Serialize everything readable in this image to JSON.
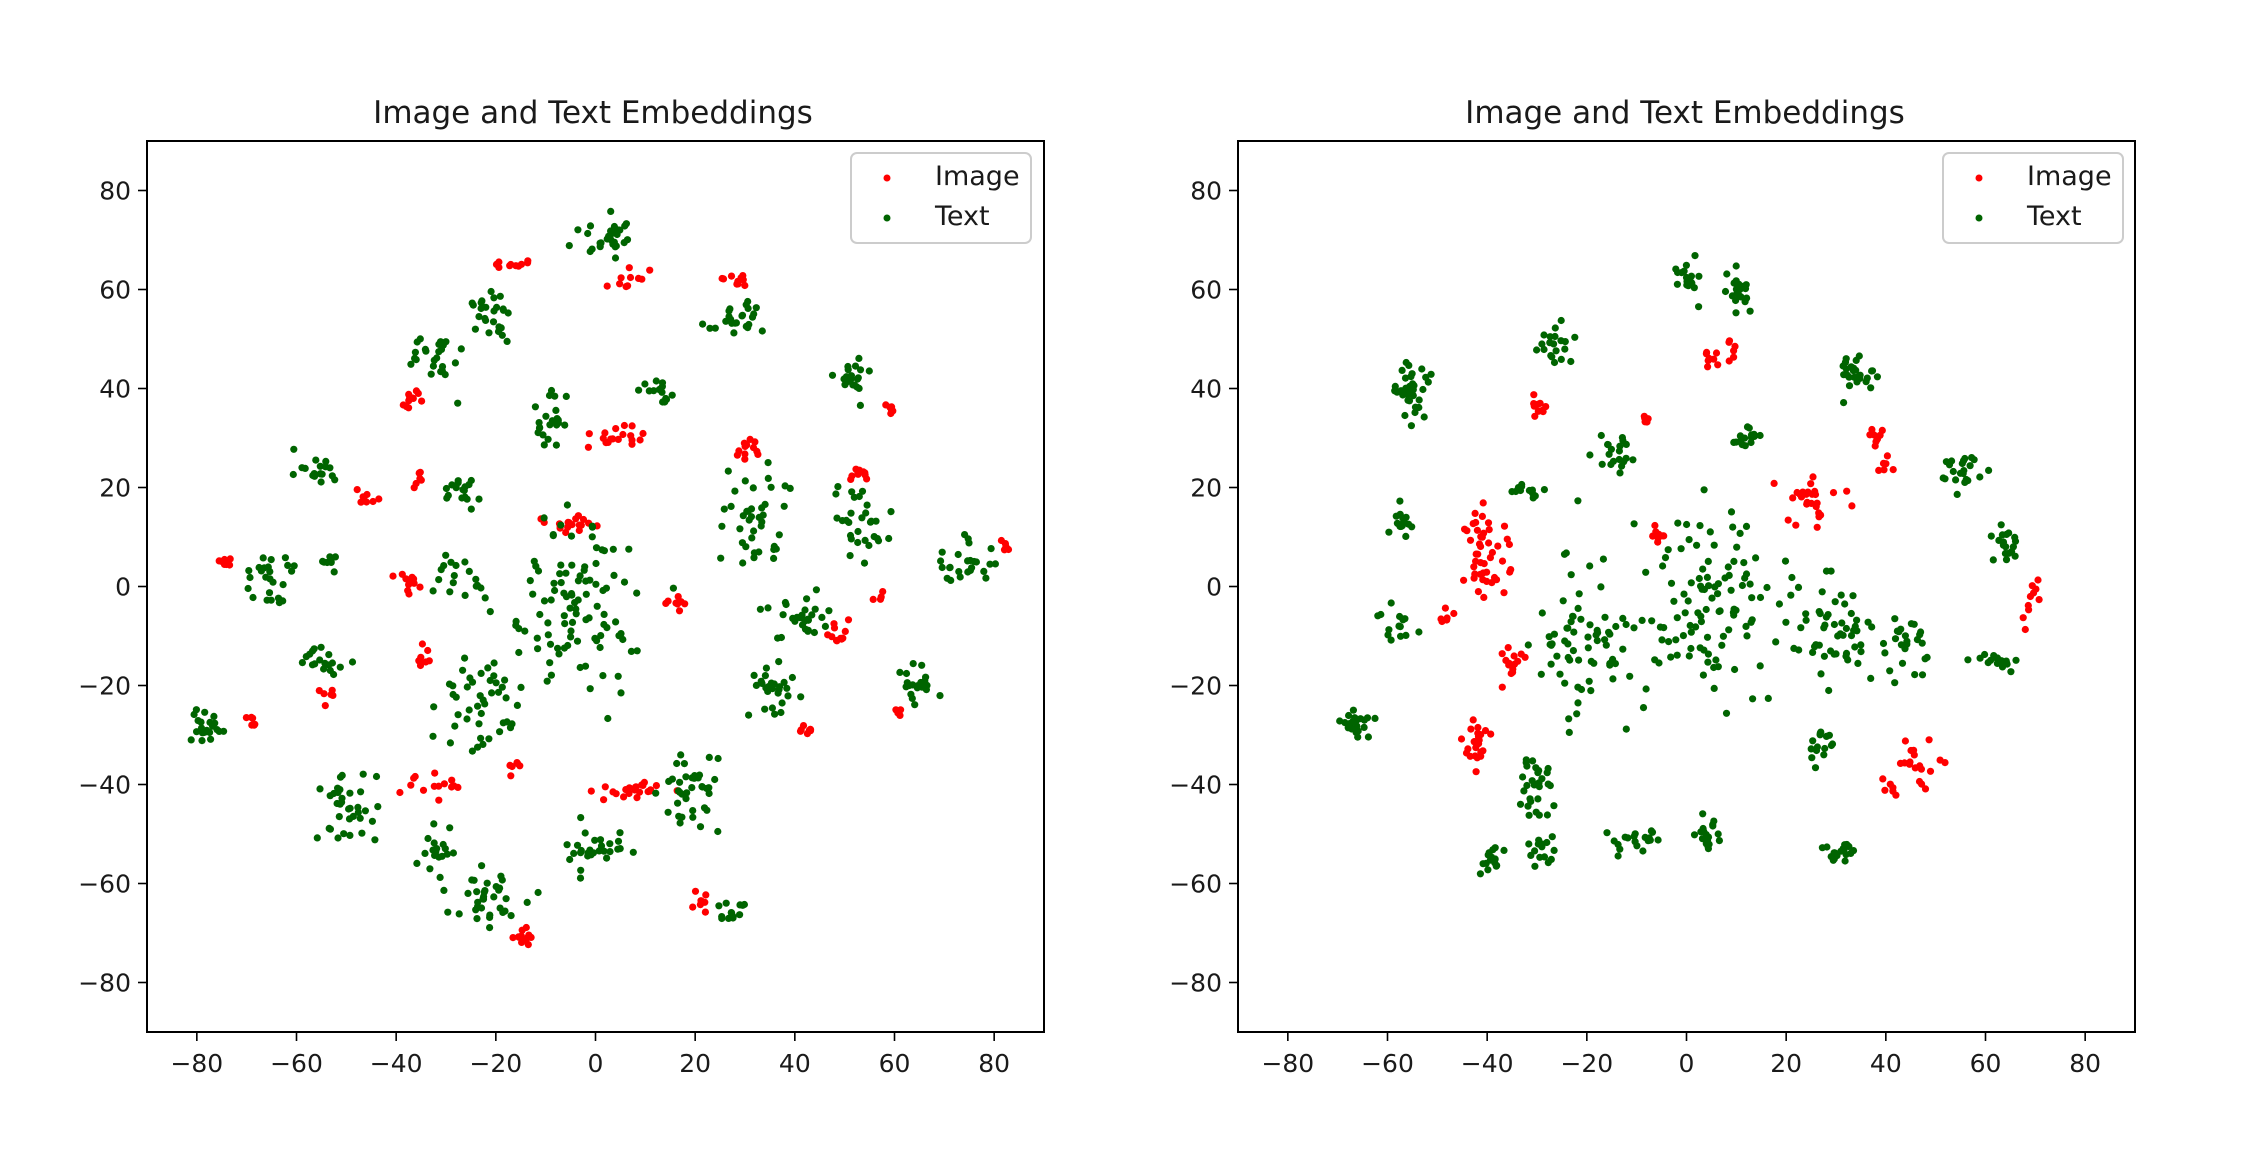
{
  "chart_data": [
    {
      "type": "scatter",
      "title": "Image and Text Embeddings",
      "xlabel": "",
      "ylabel": "",
      "xlim": [
        -90,
        90
      ],
      "ylim": [
        -90,
        90
      ],
      "xticks": [
        -80,
        -60,
        -40,
        -20,
        0,
        20,
        40,
        60,
        80
      ],
      "yticks": [
        -80,
        -60,
        -40,
        -20,
        0,
        20,
        40,
        60,
        80
      ],
      "xtick_labels": [
        "−80",
        "−60",
        "−40",
        "−20",
        "0",
        "20",
        "40",
        "60",
        "80"
      ],
      "ytick_labels": [
        "−80",
        "−60",
        "−40",
        "−20",
        "0",
        "20",
        "40",
        "60",
        "80"
      ],
      "grid": false,
      "legend": {
        "placement": "top-right",
        "entries": [
          "Image",
          "Text"
        ]
      },
      "series": [
        {
          "name": "Image",
          "color": "#ff0000",
          "clusters": [
            {
              "x": -17,
              "y": 65,
              "sx": 2,
              "sy": 1,
              "n": 10
            },
            {
              "x": 7,
              "y": 62,
              "sx": 2.5,
              "sy": 1.5,
              "n": 10
            },
            {
              "x": 28,
              "y": 62,
              "sx": 1.2,
              "sy": 1,
              "n": 10
            },
            {
              "x": -37,
              "y": 38,
              "sx": 1.2,
              "sy": 1.5,
              "n": 12
            },
            {
              "x": 5,
              "y": 30,
              "sx": 4,
              "sy": 2,
              "n": 18
            },
            {
              "x": 31,
              "y": 28,
              "sx": 2,
              "sy": 2,
              "n": 12
            },
            {
              "x": 59,
              "y": 36,
              "sx": 0.8,
              "sy": 1,
              "n": 6
            },
            {
              "x": -35,
              "y": 21,
              "sx": 1,
              "sy": 1.5,
              "n": 6
            },
            {
              "x": -46,
              "y": 18,
              "sx": 2,
              "sy": 1.5,
              "n": 8
            },
            {
              "x": 53,
              "y": 23,
              "sx": 2,
              "sy": 1,
              "n": 12
            },
            {
              "x": -5,
              "y": 13,
              "sx": 4,
              "sy": 1,
              "n": 18
            },
            {
              "x": -74,
              "y": 5,
              "sx": 1,
              "sy": 1.5,
              "n": 8
            },
            {
              "x": -38,
              "y": 1,
              "sx": 2,
              "sy": 1.5,
              "n": 12
            },
            {
              "x": 16,
              "y": -4,
              "sx": 1.5,
              "sy": 1,
              "n": 8
            },
            {
              "x": 49,
              "y": -10,
              "sx": 1.5,
              "sy": 2,
              "n": 12
            },
            {
              "x": 57,
              "y": -2,
              "sx": 1,
              "sy": 1,
              "n": 4
            },
            {
              "x": -36,
              "y": -15,
              "sx": 1.5,
              "sy": 1.5,
              "n": 9
            },
            {
              "x": -54,
              "y": -21,
              "sx": 1.2,
              "sy": 1,
              "n": 6
            },
            {
              "x": -69,
              "y": -27,
              "sx": 1,
              "sy": 1.2,
              "n": 6
            },
            {
              "x": 42,
              "y": -29,
              "sx": 1.2,
              "sy": 0.8,
              "n": 8
            },
            {
              "x": 61,
              "y": -25,
              "sx": 1,
              "sy": 1,
              "n": 5
            },
            {
              "x": -32,
              "y": -40,
              "sx": 4,
              "sy": 1.5,
              "n": 14
            },
            {
              "x": -16,
              "y": -36,
              "sx": 1.2,
              "sy": 1.5,
              "n": 6
            },
            {
              "x": 7,
              "y": -41,
              "sx": 5,
              "sy": 1,
              "n": 22
            },
            {
              "x": 21,
              "y": -63,
              "sx": 1,
              "sy": 1.5,
              "n": 7
            },
            {
              "x": -15,
              "y": -71,
              "sx": 1.5,
              "sy": 1,
              "n": 12
            },
            {
              "x": 82,
              "y": 8,
              "sx": 0.7,
              "sy": 0.7,
              "n": 5
            }
          ]
        },
        {
          "name": "Text",
          "color": "#006400",
          "clusters": [
            {
              "x": 3,
              "y": 70,
              "sx": 3.5,
              "sy": 3,
              "n": 30
            },
            {
              "x": -21,
              "y": 55,
              "sx": 3,
              "sy": 3,
              "n": 25
            },
            {
              "x": 28,
              "y": 54,
              "sx": 4,
              "sy": 3,
              "n": 25
            },
            {
              "x": -32,
              "y": 46,
              "sx": 3,
              "sy": 3.5,
              "n": 25
            },
            {
              "x": -9,
              "y": 33,
              "sx": 2,
              "sy": 4,
              "n": 22
            },
            {
              "x": 12,
              "y": 40,
              "sx": 2.5,
              "sy": 2,
              "n": 15
            },
            {
              "x": 52,
              "y": 41,
              "sx": 2.5,
              "sy": 3,
              "n": 20
            },
            {
              "x": -56,
              "y": 24,
              "sx": 3,
              "sy": 2,
              "n": 18
            },
            {
              "x": -27,
              "y": 20,
              "sx": 2.5,
              "sy": 2.5,
              "n": 18
            },
            {
              "x": 32,
              "y": 12,
              "sx": 4,
              "sy": 7,
              "n": 40
            },
            {
              "x": 52,
              "y": 13,
              "sx": 4,
              "sy": 5,
              "n": 30
            },
            {
              "x": -65,
              "y": 2,
              "sx": 3,
              "sy": 4,
              "n": 25
            },
            {
              "x": -53,
              "y": 5,
              "sx": 1,
              "sy": 1.5,
              "n": 8
            },
            {
              "x": -28,
              "y": 2,
              "sx": 3,
              "sy": 3,
              "n": 18
            },
            {
              "x": 74,
              "y": 5,
              "sx": 4,
              "sy": 3,
              "n": 25
            },
            {
              "x": -5,
              "y": -5,
              "sx": 9,
              "sy": 12,
              "n": 100
            },
            {
              "x": 40,
              "y": -6,
              "sx": 4,
              "sy": 4,
              "n": 30
            },
            {
              "x": -55,
              "y": -15,
              "sx": 3,
              "sy": 2,
              "n": 18
            },
            {
              "x": -24,
              "y": -22,
              "sx": 5,
              "sy": 6,
              "n": 45
            },
            {
              "x": 35,
              "y": -21,
              "sx": 3,
              "sy": 3.5,
              "n": 28
            },
            {
              "x": 65,
              "y": -20,
              "sx": 2,
              "sy": 3,
              "n": 20
            },
            {
              "x": -78,
              "y": -28,
              "sx": 2.5,
              "sy": 2,
              "n": 22
            },
            {
              "x": -50,
              "y": -45,
              "sx": 4,
              "sy": 5,
              "n": 35
            },
            {
              "x": 20,
              "y": -42,
              "sx": 4,
              "sy": 5,
              "n": 38
            },
            {
              "x": 0,
              "y": -52,
              "sx": 4,
              "sy": 3,
              "n": 28
            },
            {
              "x": -22,
              "y": -63,
              "sx": 4,
              "sy": 4,
              "n": 35
            },
            {
              "x": 27,
              "y": -66,
              "sx": 2,
              "sy": 2,
              "n": 15
            },
            {
              "x": -32,
              "y": -54,
              "sx": 2.5,
              "sy": 3,
              "n": 18
            }
          ]
        }
      ]
    },
    {
      "type": "scatter",
      "title": "Image and Text Embeddings",
      "xlabel": "",
      "ylabel": "",
      "xlim": [
        -90,
        90
      ],
      "ylim": [
        -90,
        90
      ],
      "xticks": [
        -80,
        -60,
        -40,
        -20,
        0,
        20,
        40,
        60,
        80
      ],
      "yticks": [
        -80,
        -60,
        -40,
        -20,
        0,
        20,
        40,
        60,
        80
      ],
      "xtick_labels": [
        "−80",
        "−60",
        "−40",
        "−20",
        "0",
        "20",
        "40",
        "60",
        "80"
      ],
      "ytick_labels": [
        "−80",
        "−60",
        "−40",
        "−20",
        "0",
        "20",
        "40",
        "60",
        "80"
      ],
      "grid": false,
      "legend": {
        "placement": "top-right",
        "entries": [
          "Image",
          "Text"
        ]
      },
      "series": [
        {
          "name": "Image",
          "color": "#ff0000",
          "clusters": [
            {
              "x": 5,
              "y": 46,
              "sx": 1,
              "sy": 1,
              "n": 8
            },
            {
              "x": 9,
              "y": 48,
              "sx": 0.8,
              "sy": 1,
              "n": 6
            },
            {
              "x": -30,
              "y": 36,
              "sx": 1,
              "sy": 1.5,
              "n": 10
            },
            {
              "x": -8,
              "y": 34,
              "sx": 0.8,
              "sy": 0.8,
              "n": 5
            },
            {
              "x": 38,
              "y": 31,
              "sx": 1,
              "sy": 1.5,
              "n": 9
            },
            {
              "x": 40,
              "y": 25,
              "sx": 1,
              "sy": 1,
              "n": 6
            },
            {
              "x": -42,
              "y": 12,
              "sx": 2,
              "sy": 3,
              "n": 14
            },
            {
              "x": -40,
              "y": 3,
              "sx": 3,
              "sy": 5,
              "n": 32
            },
            {
              "x": 24,
              "y": 17,
              "sx": 4,
              "sy": 3,
              "n": 28
            },
            {
              "x": -6,
              "y": 10,
              "sx": 1.2,
              "sy": 1.2,
              "n": 8
            },
            {
              "x": -48,
              "y": -6,
              "sx": 1,
              "sy": 1,
              "n": 6
            },
            {
              "x": -35,
              "y": -14,
              "sx": 2,
              "sy": 3,
              "n": 14
            },
            {
              "x": 69,
              "y": -3,
              "sx": 1,
              "sy": 3,
              "n": 10
            },
            {
              "x": -43,
              "y": -32,
              "sx": 2,
              "sy": 3,
              "n": 24
            },
            {
              "x": 46,
              "y": -35,
              "sx": 3,
              "sy": 3,
              "n": 18
            },
            {
              "x": 41,
              "y": -41,
              "sx": 1,
              "sy": 1,
              "n": 6
            }
          ]
        },
        {
          "name": "Text",
          "color": "#006400",
          "clusters": [
            {
              "x": 0,
              "y": 63,
              "sx": 2,
              "sy": 2.5,
              "n": 20
            },
            {
              "x": 11,
              "y": 60,
              "sx": 2.5,
              "sy": 2.5,
              "n": 20
            },
            {
              "x": -55,
              "y": 40,
              "sx": 3,
              "sy": 3.5,
              "n": 35
            },
            {
              "x": -27,
              "y": 48,
              "sx": 2.5,
              "sy": 2.5,
              "n": 20
            },
            {
              "x": 34,
              "y": 42,
              "sx": 3,
              "sy": 3,
              "n": 28
            },
            {
              "x": 12,
              "y": 30,
              "sx": 2,
              "sy": 1.5,
              "n": 15
            },
            {
              "x": -14,
              "y": 27,
              "sx": 2.5,
              "sy": 3,
              "n": 20
            },
            {
              "x": 55,
              "y": 23,
              "sx": 2.5,
              "sy": 3,
              "n": 22
            },
            {
              "x": -32,
              "y": 20,
              "sx": 2,
              "sy": 1.5,
              "n": 12
            },
            {
              "x": -57,
              "y": 12,
              "sx": 1.5,
              "sy": 2.5,
              "n": 15
            },
            {
              "x": 64,
              "y": 8,
              "sx": 2,
              "sy": 2.5,
              "n": 18
            },
            {
              "x": 5,
              "y": -5,
              "sx": 8,
              "sy": 12,
              "n": 110
            },
            {
              "x": 30,
              "y": -10,
              "sx": 5,
              "sy": 7,
              "n": 50
            },
            {
              "x": -20,
              "y": -12,
              "sx": 7,
              "sy": 10,
              "n": 70
            },
            {
              "x": 44,
              "y": -12,
              "sx": 2.5,
              "sy": 5,
              "n": 25
            },
            {
              "x": 62,
              "y": -15,
              "sx": 3,
              "sy": 2,
              "n": 15
            },
            {
              "x": -58,
              "y": -8,
              "sx": 2,
              "sy": 2,
              "n": 15
            },
            {
              "x": -66,
              "y": -28,
              "sx": 2.5,
              "sy": 2,
              "n": 22
            },
            {
              "x": -30,
              "y": -40,
              "sx": 2,
              "sy": 6,
              "n": 30
            },
            {
              "x": 27,
              "y": -32,
              "sx": 2,
              "sy": 2.5,
              "n": 15
            },
            {
              "x": -39,
              "y": -55,
              "sx": 1.5,
              "sy": 1.5,
              "n": 15
            },
            {
              "x": -29,
              "y": -53,
              "sx": 2,
              "sy": 2,
              "n": 15
            },
            {
              "x": -10,
              "y": -51,
              "sx": 4,
              "sy": 1.5,
              "n": 20
            },
            {
              "x": 4,
              "y": -51,
              "sx": 2,
              "sy": 2.5,
              "n": 18
            },
            {
              "x": 31,
              "y": -53,
              "sx": 2,
              "sy": 1.2,
              "n": 18
            }
          ]
        }
      ]
    }
  ]
}
